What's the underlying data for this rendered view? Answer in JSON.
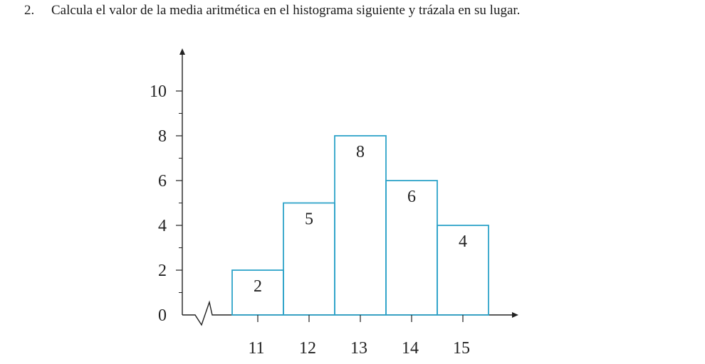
{
  "problem": {
    "number": "2.",
    "text": "Calcula el valor de la media aritmética en el histograma siguiente y trázala en su lugar."
  },
  "chart_data": {
    "type": "bar",
    "categories": [
      "11",
      "12",
      "13",
      "14",
      "15"
    ],
    "values": [
      2,
      5,
      8,
      6,
      4
    ],
    "data_labels": [
      "2",
      "5",
      "8",
      "6",
      "4"
    ],
    "y_ticks": [
      0,
      2,
      4,
      6,
      8,
      10
    ],
    "ylim": [
      0,
      11
    ],
    "bar_color": "#2ea3c9",
    "grid": false,
    "legend": "none",
    "axis_break": true
  }
}
